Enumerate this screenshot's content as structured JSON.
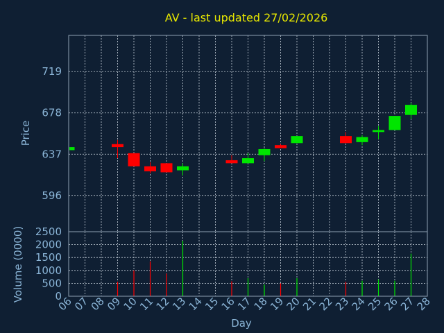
{
  "chart_data": [
    {
      "type": "candlestick",
      "title": "AV - last updated 27/02/2026",
      "ylabel": "Price",
      "yticks": [
        596,
        637,
        678,
        719
      ],
      "ylim": [
        560,
        755
      ],
      "grid": true,
      "up_color": "#00e600",
      "down_color": "#ff0000",
      "candles": [
        {
          "day": "06",
          "open": 641,
          "close": 644,
          "high": 644,
          "low": 641
        },
        {
          "day": "09",
          "open": 647,
          "close": 644,
          "high": 651,
          "low": 633
        },
        {
          "day": "10",
          "open": 638,
          "close": 625,
          "high": 638,
          "low": 625
        },
        {
          "day": "11",
          "open": 625,
          "close": 620,
          "high": 629,
          "low": 618
        },
        {
          "day": "12",
          "open": 628,
          "close": 619,
          "high": 628,
          "low": 619
        },
        {
          "day": "13",
          "open": 621,
          "close": 625,
          "high": 628,
          "low": 616
        },
        {
          "day": "16",
          "open": 631,
          "close": 628,
          "high": 636,
          "low": 628
        },
        {
          "day": "17",
          "open": 628,
          "close": 633,
          "high": 638,
          "low": 628
        },
        {
          "day": "18",
          "open": 636,
          "close": 642,
          "high": 643,
          "low": 630
        },
        {
          "day": "19",
          "open": 646,
          "close": 643,
          "high": 647,
          "low": 643
        },
        {
          "day": "20",
          "open": 648,
          "close": 655,
          "high": 655,
          "low": 648
        },
        {
          "day": "23",
          "open": 655,
          "close": 648,
          "high": 659,
          "low": 648
        },
        {
          "day": "24",
          "open": 649,
          "close": 654,
          "high": 656,
          "low": 646
        },
        {
          "day": "25",
          "open": 659,
          "close": 661,
          "high": 665,
          "low": 652
        },
        {
          "day": "26",
          "open": 661,
          "close": 675,
          "high": 675,
          "low": 661
        },
        {
          "day": "27",
          "open": 676,
          "close": 686,
          "high": 688,
          "low": 672
        }
      ]
    },
    {
      "type": "bar",
      "ylabel": "Volume (0000)",
      "xlabel": "Day",
      "yticks": [
        0,
        500,
        1000,
        1500,
        2000,
        2500
      ],
      "ylim": [
        0,
        2500
      ],
      "x_tick_labels": [
        "06",
        "07",
        "08",
        "09",
        "10",
        "11",
        "12",
        "13",
        "14",
        "15",
        "16",
        "17",
        "18",
        "19",
        "20",
        "21",
        "22",
        "23",
        "24",
        "25",
        "26",
        "27",
        "28"
      ],
      "bars": [
        {
          "day": "06",
          "value": 0,
          "dir": "up"
        },
        {
          "day": "09",
          "value": 560,
          "dir": "down"
        },
        {
          "day": "10",
          "value": 1000,
          "dir": "down"
        },
        {
          "day": "11",
          "value": 1350,
          "dir": "down"
        },
        {
          "day": "12",
          "value": 880,
          "dir": "down"
        },
        {
          "day": "13",
          "value": 2150,
          "dir": "up"
        },
        {
          "day": "16",
          "value": 580,
          "dir": "down"
        },
        {
          "day": "17",
          "value": 700,
          "dir": "up"
        },
        {
          "day": "18",
          "value": 450,
          "dir": "up"
        },
        {
          "day": "19",
          "value": 500,
          "dir": "down"
        },
        {
          "day": "20",
          "value": 700,
          "dir": "up"
        },
        {
          "day": "23",
          "value": 560,
          "dir": "down"
        },
        {
          "day": "24",
          "value": 600,
          "dir": "up"
        },
        {
          "day": "25",
          "value": 650,
          "dir": "up"
        },
        {
          "day": "26",
          "value": 600,
          "dir": "up"
        },
        {
          "day": "27",
          "value": 1650,
          "dir": "up"
        }
      ]
    }
  ]
}
